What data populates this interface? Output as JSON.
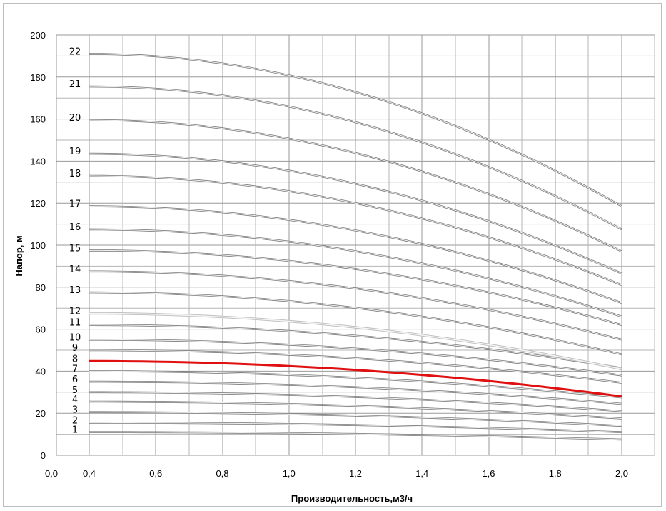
{
  "chart_data": {
    "type": "line",
    "xlabel": "Производительность,м3/ч",
    "ylabel": "Напор, м",
    "xlim": [
      0,
      2.0
    ],
    "ylim": [
      0,
      200
    ],
    "x_ticks": [
      "0,0",
      "0,4",
      "0,6",
      "0,8",
      "1,0",
      "1,2",
      "1,4",
      "1,6",
      "1,8",
      "2,0"
    ],
    "y_ticks": [
      "0",
      "20",
      "40",
      "60",
      "80",
      "100",
      "120",
      "140",
      "160",
      "180",
      "200"
    ],
    "grid": true,
    "highlight_series": "8",
    "highlight_color": "#e01010",
    "series": [
      {
        "name": "1",
        "x": [
          0.4,
          2.0
        ],
        "y": [
          11,
          7.5
        ]
      },
      {
        "name": "2",
        "x": [
          0.4,
          2.0
        ],
        "y": [
          15.5,
          11
        ]
      },
      {
        "name": "3",
        "x": [
          0.4,
          2.0
        ],
        "y": [
          20.5,
          14
        ]
      },
      {
        "name": "4",
        "x": [
          0.4,
          2.0
        ],
        "y": [
          25.5,
          17.5
        ]
      },
      {
        "name": "5",
        "x": [
          0.4,
          2.0
        ],
        "y": [
          30,
          21
        ]
      },
      {
        "name": "6",
        "x": [
          0.4,
          2.0
        ],
        "y": [
          35,
          24.5
        ]
      },
      {
        "name": "7",
        "x": [
          0.4,
          2.0
        ],
        "y": [
          40,
          27.5
        ]
      },
      {
        "name": "8",
        "x": [
          0.4,
          2.0
        ],
        "y": [
          44.8,
          28
        ]
      },
      {
        "name": "9",
        "x": [
          0.4,
          2.0
        ],
        "y": [
          50,
          34.5
        ]
      },
      {
        "name": "10",
        "x": [
          0.4,
          2.0
        ],
        "y": [
          55,
          38
        ]
      },
      {
        "name": "11",
        "x": [
          0.4,
          2.0
        ],
        "y": [
          62,
          41.5
        ]
      },
      {
        "name": "12",
        "x": [
          0.4,
          2.0
        ],
        "y": [
          67.5,
          41
        ]
      },
      {
        "name": "13",
        "x": [
          0.4,
          2.0
        ],
        "y": [
          77.5,
          48
        ]
      },
      {
        "name": "14",
        "x": [
          0.4,
          2.0
        ],
        "y": [
          87.5,
          55
        ]
      },
      {
        "name": "15",
        "x": [
          0.4,
          2.0
        ],
        "y": [
          97.5,
          62
        ]
      },
      {
        "name": "16",
        "x": [
          0.4,
          2.0
        ],
        "y": [
          107.5,
          66
        ]
      },
      {
        "name": "17",
        "x": [
          0.4,
          2.0
        ],
        "y": [
          118.5,
          72.5
        ]
      },
      {
        "name": "18",
        "x": [
          0.4,
          2.0
        ],
        "y": [
          133,
          81
        ]
      },
      {
        "name": "19",
        "x": [
          0.4,
          2.0
        ],
        "y": [
          143.5,
          86.5
        ]
      },
      {
        "name": "20",
        "x": [
          0.4,
          2.0
        ],
        "y": [
          159.5,
          97
        ]
      },
      {
        "name": "21",
        "x": [
          0.4,
          2.0
        ],
        "y": [
          175.5,
          107.5
        ]
      },
      {
        "name": "22",
        "x": [
          0.4,
          2.0
        ],
        "y": [
          191,
          118.5
        ]
      }
    ]
  }
}
